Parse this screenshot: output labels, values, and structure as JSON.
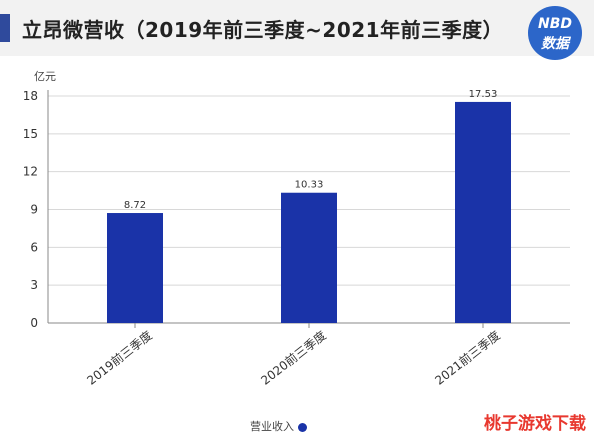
{
  "header": {
    "title": "立昂微营收（2019年前三季度~2021年前三季度）",
    "badge_line1": "NBD",
    "badge_line2": "数据"
  },
  "legend": {
    "label": "营业收入"
  },
  "corner_logo": "桃子游戏下载",
  "chart_data": {
    "type": "bar",
    "ylabel": "亿元",
    "categories": [
      "2019前三季度",
      "2020前三季度",
      "2021前三季度"
    ],
    "values": [
      8.72,
      10.33,
      17.53
    ],
    "value_labels": [
      "8.72",
      "10.33",
      "17.53"
    ],
    "ylim": [
      0,
      18
    ],
    "yticks": [
      0,
      3,
      6,
      9,
      12,
      15,
      18
    ],
    "bar_color": "#1a33a8",
    "grid": true,
    "legend_position": "bottom"
  }
}
